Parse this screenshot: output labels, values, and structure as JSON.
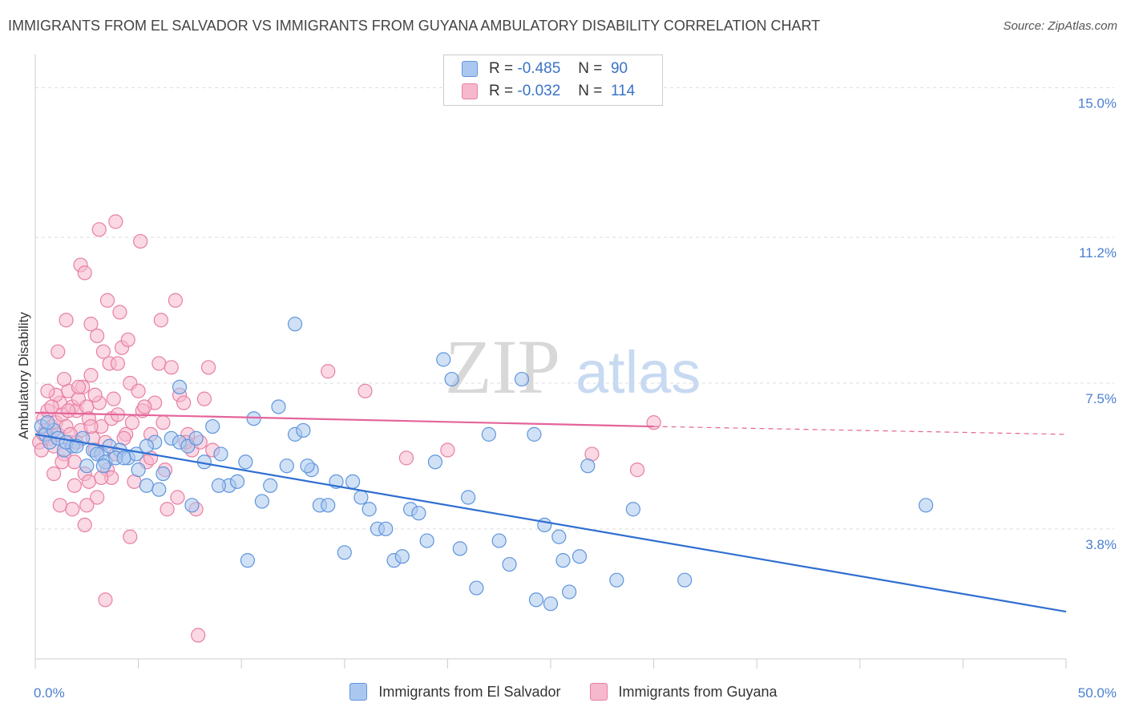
{
  "header": {
    "title": "IMMIGRANTS FROM EL SALVADOR VS IMMIGRANTS FROM GUYANA AMBULATORY DISABILITY CORRELATION CHART",
    "source": "Source: ZipAtlas.com"
  },
  "watermark": {
    "zip": "ZIP",
    "atlas": "atlas"
  },
  "legend": {
    "r_label": "R =",
    "n_label": "N =",
    "rows": [
      {
        "r": "-0.485",
        "n": "90",
        "color": "#aac8ef"
      },
      {
        "r": "-0.032",
        "n": "114",
        "color": "#f6b8cd"
      }
    ]
  },
  "colors": {
    "blue_fill": "#aac8ef",
    "blue_stroke": "#5f95dc",
    "blue_line": "#2f6fd1",
    "pink_fill": "#f6b8cd",
    "pink_stroke": "#e87fa3",
    "pink_line": "#e4649a",
    "tick_text": "#4a7fd1",
    "grid": "#dddddd"
  },
  "chart_data": {
    "type": "scatter",
    "title": "IMMIGRANTS FROM EL SALVADOR VS IMMIGRANTS FROM GUYANA AMBULATORY DISABILITY CORRELATION CHART",
    "xlabel": "",
    "ylabel": "Ambulatory Disability",
    "xlim": [
      0,
      50
    ],
    "ylim": [
      0.5,
      15.7
    ],
    "x_ticks": [
      "0.0%",
      "50.0%"
    ],
    "y_ticks": [
      {
        "value": 3.8,
        "label": "3.8%"
      },
      {
        "value": 7.5,
        "label": "7.5%"
      },
      {
        "value": 11.2,
        "label": "11.2%"
      },
      {
        "value": 15.0,
        "label": "15.0%"
      }
    ],
    "grid": true,
    "legend_position": "top-center",
    "series": [
      {
        "name": "Immigrants from El Salvador",
        "color": "#aac8ef",
        "trend": {
          "x": [
            0,
            50
          ],
          "y": [
            6.2,
            1.7
          ],
          "dashed_from": null
        },
        "points": [
          [
            0.3,
            6.4
          ],
          [
            0.5,
            6.2
          ],
          [
            0.7,
            6.0
          ],
          [
            0.9,
            6.3
          ],
          [
            1.1,
            6.1
          ],
          [
            1.4,
            5.8
          ],
          [
            1.8,
            5.9
          ],
          [
            2.3,
            6.1
          ],
          [
            2.8,
            5.8
          ],
          [
            3.2,
            5.7
          ],
          [
            3.6,
            5.9
          ],
          [
            4.1,
            5.8
          ],
          [
            4.5,
            5.6
          ],
          [
            4.9,
            5.7
          ],
          [
            1.5,
            6.0
          ],
          [
            2.0,
            5.9
          ],
          [
            2.5,
            5.4
          ],
          [
            3.0,
            5.7
          ],
          [
            3.4,
            5.5
          ],
          [
            3.9,
            5.6
          ],
          [
            4.3,
            5.6
          ],
          [
            5.0,
            5.3
          ],
          [
            5.4,
            4.9
          ],
          [
            5.8,
            6.0
          ],
          [
            6.2,
            5.2
          ],
          [
            6.6,
            6.1
          ],
          [
            7.0,
            6.0
          ],
          [
            7.4,
            5.9
          ],
          [
            7.8,
            6.1
          ],
          [
            8.2,
            5.5
          ],
          [
            8.6,
            6.4
          ],
          [
            9.0,
            5.7
          ],
          [
            9.4,
            4.9
          ],
          [
            9.8,
            5.0
          ],
          [
            10.2,
            5.5
          ],
          [
            10.6,
            6.6
          ],
          [
            11.0,
            4.5
          ],
          [
            11.4,
            4.9
          ],
          [
            11.8,
            6.9
          ],
          [
            12.2,
            5.4
          ],
          [
            12.6,
            6.2
          ],
          [
            13.0,
            6.3
          ],
          [
            13.4,
            5.3
          ],
          [
            13.8,
            4.4
          ],
          [
            14.2,
            4.4
          ],
          [
            14.6,
            5.0
          ],
          [
            15.0,
            3.2
          ],
          [
            15.4,
            5.0
          ],
          [
            15.8,
            4.6
          ],
          [
            16.2,
            4.3
          ],
          [
            16.6,
            3.8
          ],
          [
            17.0,
            3.8
          ],
          [
            17.4,
            3.0
          ],
          [
            17.8,
            3.1
          ],
          [
            18.2,
            4.3
          ],
          [
            18.6,
            4.2
          ],
          [
            19.0,
            3.5
          ],
          [
            19.4,
            5.5
          ],
          [
            19.8,
            8.1
          ],
          [
            20.2,
            7.6
          ],
          [
            20.6,
            3.3
          ],
          [
            21.0,
            4.6
          ],
          [
            21.4,
            2.3
          ],
          [
            22.0,
            6.2
          ],
          [
            22.5,
            3.5
          ],
          [
            23.0,
            2.9
          ],
          [
            23.6,
            7.6
          ],
          [
            24.2,
            6.2
          ],
          [
            24.7,
            3.9
          ],
          [
            25.0,
            1.9
          ],
          [
            25.4,
            3.6
          ],
          [
            25.9,
            2.2
          ],
          [
            26.4,
            3.1
          ],
          [
            26.8,
            5.4
          ],
          [
            7.0,
            7.4
          ],
          [
            12.6,
            9.0
          ],
          [
            6.0,
            4.8
          ],
          [
            7.6,
            4.4
          ],
          [
            10.3,
            3.0
          ],
          [
            5.4,
            5.9
          ],
          [
            3.3,
            5.4
          ],
          [
            8.9,
            4.9
          ],
          [
            13.2,
            5.4
          ],
          [
            28.2,
            2.5
          ],
          [
            31.5,
            2.5
          ],
          [
            24.3,
            2.0
          ],
          [
            25.6,
            3.0
          ],
          [
            29.0,
            4.3
          ],
          [
            43.2,
            4.4
          ],
          [
            0.6,
            6.5
          ]
        ]
      },
      {
        "name": "Immigrants from Guyana",
        "color": "#f6b8cd",
        "trend": {
          "x": [
            0,
            30,
            50
          ],
          "y": [
            6.75,
            6.4,
            6.2
          ],
          "dashed_from": 30
        },
        "points": [
          [
            0.2,
            6.0
          ],
          [
            0.4,
            6.6
          ],
          [
            0.5,
            6.3
          ],
          [
            0.6,
            6.8
          ],
          [
            0.7,
            6.1
          ],
          [
            0.8,
            6.4
          ],
          [
            0.9,
            5.9
          ],
          [
            1.0,
            6.5
          ],
          [
            1.1,
            6.2
          ],
          [
            1.2,
            7.0
          ],
          [
            1.3,
            6.7
          ],
          [
            1.4,
            5.7
          ],
          [
            1.5,
            6.4
          ],
          [
            1.6,
            7.3
          ],
          [
            1.7,
            6.0
          ],
          [
            1.8,
            6.9
          ],
          [
            1.9,
            5.5
          ],
          [
            2.0,
            6.8
          ],
          [
            2.1,
            7.1
          ],
          [
            2.2,
            6.3
          ],
          [
            2.3,
            7.4
          ],
          [
            2.4,
            5.2
          ],
          [
            2.5,
            6.9
          ],
          [
            2.6,
            6.6
          ],
          [
            2.7,
            7.7
          ],
          [
            2.8,
            6.1
          ],
          [
            2.9,
            5.8
          ],
          [
            3.0,
            4.6
          ],
          [
            3.1,
            7.0
          ],
          [
            3.2,
            6.4
          ],
          [
            3.3,
            8.3
          ],
          [
            3.4,
            6.0
          ],
          [
            3.5,
            5.3
          ],
          [
            3.6,
            8.0
          ],
          [
            3.7,
            6.6
          ],
          [
            3.8,
            7.1
          ],
          [
            3.9,
            5.7
          ],
          [
            4.0,
            6.7
          ],
          [
            4.2,
            8.4
          ],
          [
            4.4,
            6.2
          ],
          [
            4.6,
            7.5
          ],
          [
            4.8,
            5.0
          ],
          [
            5.0,
            7.3
          ],
          [
            5.2,
            6.8
          ],
          [
            5.4,
            5.5
          ],
          [
            5.6,
            6.2
          ],
          [
            5.8,
            7.0
          ],
          [
            6.0,
            8.0
          ],
          [
            6.2,
            6.5
          ],
          [
            6.4,
            4.3
          ],
          [
            6.6,
            7.9
          ],
          [
            6.8,
            9.6
          ],
          [
            7.0,
            7.2
          ],
          [
            7.2,
            7.0
          ],
          [
            7.4,
            6.2
          ],
          [
            7.6,
            5.8
          ],
          [
            7.8,
            4.3
          ],
          [
            8.0,
            6.0
          ],
          [
            8.2,
            7.1
          ],
          [
            8.4,
            7.9
          ],
          [
            8.6,
            5.8
          ],
          [
            2.2,
            10.5
          ],
          [
            2.4,
            10.3
          ],
          [
            3.1,
            11.4
          ],
          [
            3.9,
            11.6
          ],
          [
            5.1,
            11.1
          ],
          [
            3.5,
            9.6
          ],
          [
            4.1,
            9.3
          ],
          [
            6.1,
            9.1
          ],
          [
            1.5,
            9.1
          ],
          [
            2.7,
            9.0
          ],
          [
            4.0,
            8.0
          ],
          [
            3.0,
            8.7
          ],
          [
            4.5,
            8.6
          ],
          [
            1.1,
            8.3
          ],
          [
            2.1,
            7.4
          ],
          [
            1.0,
            7.2
          ],
          [
            1.6,
            6.8
          ],
          [
            2.7,
            6.4
          ],
          [
            1.3,
            5.5
          ],
          [
            0.9,
            5.2
          ],
          [
            1.8,
            4.3
          ],
          [
            2.5,
            4.4
          ],
          [
            2.4,
            3.9
          ],
          [
            4.6,
            3.6
          ],
          [
            3.4,
            2.0
          ],
          [
            7.9,
            1.1
          ],
          [
            14.2,
            7.8
          ],
          [
            16.0,
            7.3
          ],
          [
            18.0,
            5.6
          ],
          [
            20.0,
            5.8
          ],
          [
            27.0,
            5.7
          ],
          [
            29.2,
            5.3
          ],
          [
            30.0,
            6.5
          ],
          [
            0.3,
            5.8
          ],
          [
            1.2,
            4.4
          ],
          [
            1.9,
            4.9
          ],
          [
            0.8,
            6.9
          ],
          [
            2.0,
            6.0
          ],
          [
            1.7,
            6.2
          ],
          [
            2.9,
            7.2
          ],
          [
            3.7,
            5.1
          ],
          [
            4.3,
            6.1
          ],
          [
            5.6,
            5.6
          ],
          [
            6.9,
            4.6
          ],
          [
            0.6,
            7.3
          ],
          [
            1.4,
            7.6
          ],
          [
            2.6,
            5.0
          ],
          [
            3.2,
            5.1
          ],
          [
            4.7,
            6.5
          ],
          [
            5.3,
            6.9
          ],
          [
            6.3,
            5.3
          ],
          [
            7.3,
            6.0
          ],
          [
            0.4,
            6.2
          ]
        ]
      }
    ]
  }
}
